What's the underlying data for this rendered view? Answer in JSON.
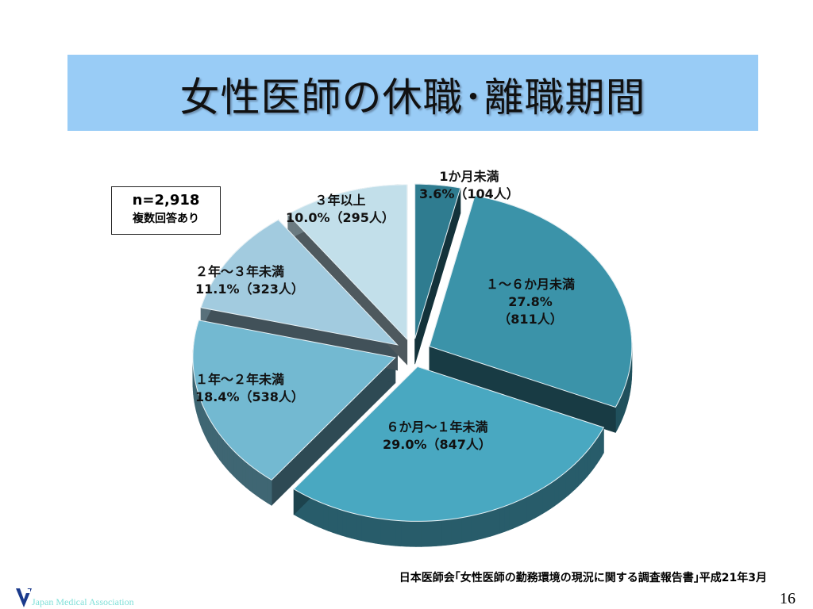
{
  "title": "女性医師の休職･離職期間",
  "note": {
    "n": "n=2,918",
    "multi": "複数回答あり"
  },
  "chart_data": {
    "type": "pie",
    "title": "女性医師の休職･離職期間",
    "start": "12 o'clock, clockwise",
    "slices": [
      {
        "name": "1か月未満",
        "percent": 3.6,
        "count": 104,
        "pct_label": "3.6%（104人）",
        "color": "#2f7c90"
      },
      {
        "name": "１～６か月未満",
        "percent": 27.8,
        "count": 811,
        "pct_label": "27.8%",
        "count_label": "（811人）",
        "color": "#3b93a9"
      },
      {
        "name": "６か月～１年未満",
        "percent": 29.0,
        "count": 847,
        "pct_label": "29.0%（847人）",
        "color": "#49a8c1"
      },
      {
        "name": "１年～２年未満",
        "percent": 18.4,
        "count": 538,
        "pct_label": "18.4%（538人）",
        "color": "#73b9d1"
      },
      {
        "name": "２年～３年未満",
        "percent": 11.1,
        "count": 323,
        "pct_label": "11.1%（323人）",
        "color": "#a2cbdf"
      },
      {
        "name": "３年以上",
        "percent": 10.0,
        "count": 295,
        "pct_label": "10.0%（295人）",
        "color": "#c2dfea"
      }
    ]
  },
  "source": "日本医師会｢女性医師の勤務環境の現況に関する調査報告書｣平成21年3月",
  "footer": {
    "org": "Japan Medical Association",
    "logo_text": "JMA",
    "page": "16"
  }
}
